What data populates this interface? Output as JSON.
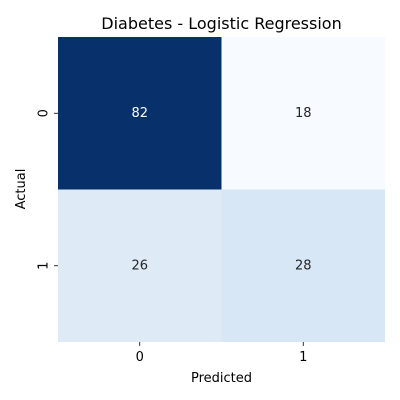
{
  "chart_data": {
    "type": "heatmap",
    "title": "Diabetes - Logistic Regression",
    "xlabel": "Predicted",
    "ylabel": "Actual",
    "x_categories": [
      "0",
      "1"
    ],
    "y_categories": [
      "0",
      "1"
    ],
    "values": [
      [
        82,
        18
      ],
      [
        26,
        28
      ]
    ],
    "colormap": "Blues",
    "vmin": 18,
    "vmax": 82,
    "colors": {
      "high": "#08306b",
      "low": "#f7fbff",
      "text_on_dark": "#ffffff",
      "text_on_light": "#262626"
    },
    "colorbar": false,
    "grid": false
  }
}
